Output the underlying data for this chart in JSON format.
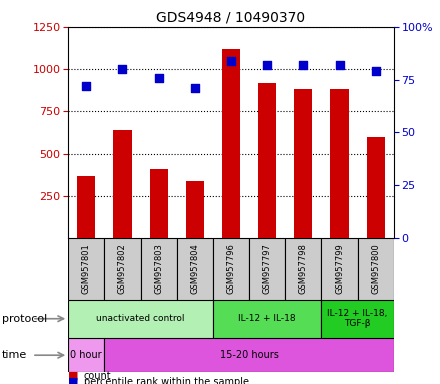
{
  "title": "GDS4948 / 10490370",
  "samples": [
    "GSM957801",
    "GSM957802",
    "GSM957803",
    "GSM957804",
    "GSM957796",
    "GSM957797",
    "GSM957798",
    "GSM957799",
    "GSM957800"
  ],
  "counts": [
    370,
    640,
    410,
    340,
    1120,
    920,
    880,
    880,
    600
  ],
  "percentile_ranks": [
    72,
    80,
    76,
    71,
    84,
    82,
    82,
    82,
    79
  ],
  "bar_color": "#cc0000",
  "dot_color": "#0000cc",
  "ylim_left": [
    0,
    1250
  ],
  "ylim_right": [
    0,
    100
  ],
  "yticks_left": [
    250,
    500,
    750,
    1000,
    1250
  ],
  "yticks_right": [
    0,
    25,
    50,
    75,
    100
  ],
  "protocol_groups": [
    {
      "label": "unactivated control",
      "start": 0,
      "end": 4,
      "color": "#b3f0b3"
    },
    {
      "label": "IL-12 + IL-18",
      "start": 4,
      "end": 7,
      "color": "#55dd55"
    },
    {
      "label": "IL-12 + IL-18,\nTGF-β",
      "start": 7,
      "end": 9,
      "color": "#22cc22"
    }
  ],
  "time_groups": [
    {
      "label": "0 hour",
      "start": 0,
      "end": 1,
      "color": "#ee99ee"
    },
    {
      "label": "15-20 hours",
      "start": 1,
      "end": 9,
      "color": "#dd55dd"
    }
  ],
  "sample_box_color": "#cccccc",
  "background_color": "#ffffff",
  "left_tick_color": "#cc0000",
  "right_tick_color": "#0000cc",
  "grid_dotted_color": "#000000"
}
